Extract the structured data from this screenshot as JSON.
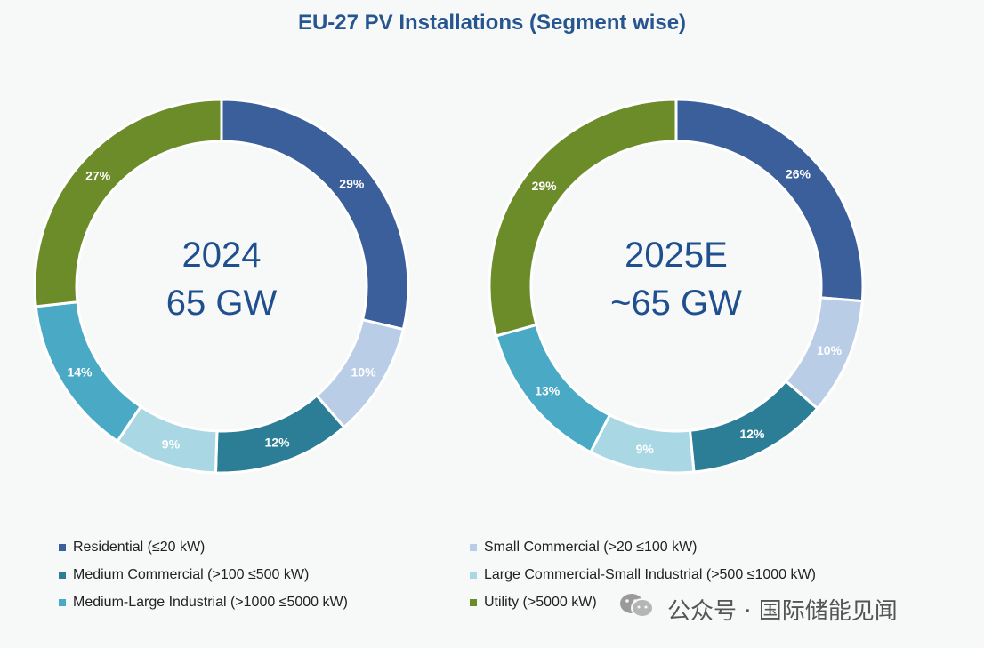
{
  "chart_data": {
    "type": "pie",
    "title": "EU-27 PV Installations (Segment wise)",
    "segments": [
      {
        "name": "Residential (≤20 kW)",
        "color": "#3a5f9b"
      },
      {
        "name": "Small Commercial (>20 ≤100 kW)",
        "color": "#b9cde6"
      },
      {
        "name": "Medium Commercial (>100 ≤500 kW)",
        "color": "#2b7e96"
      },
      {
        "name": "Large Commercial-Small Industrial (>500 ≤1000 kW)",
        "color": "#a9d8e4"
      },
      {
        "name": "Medium-Large Industrial (>1000 ≤5000 kW)",
        "color": "#4aaac6"
      },
      {
        "name": "Utility (>5000 kW)",
        "color": "#6c8c2a"
      }
    ],
    "charts": [
      {
        "center_line1": "2024",
        "center_line2": "65 GW",
        "values": [
          29,
          10,
          12,
          9,
          14,
          27
        ],
        "labels": [
          "29%",
          "10%",
          "12%",
          "9%",
          "14%",
          "27%"
        ]
      },
      {
        "center_line1": "2025E",
        "center_line2": "~65 GW",
        "values": [
          26,
          10,
          12,
          9,
          13,
          29
        ],
        "labels": [
          "26%",
          "10%",
          "12%",
          "9%",
          "13%",
          "29%"
        ]
      }
    ]
  },
  "watermark": {
    "wechat_text": "公众号 · 国际储能见闻",
    "icon": "wechat-icon"
  }
}
